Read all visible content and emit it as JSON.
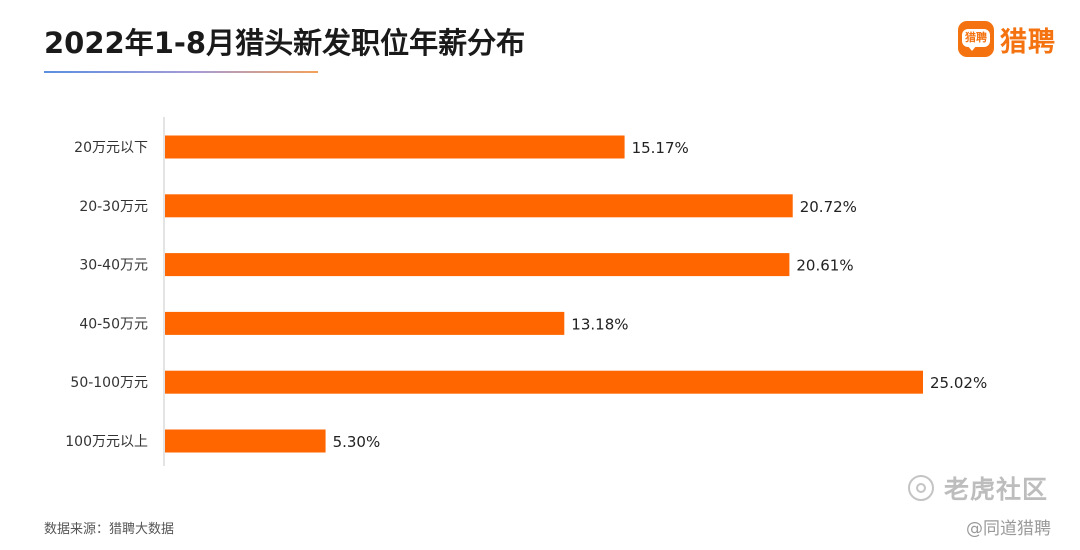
{
  "header": {
    "title": "2022年1-8月猎头新发职位年薪分布"
  },
  "logo": {
    "mark_text": "猎聘",
    "text": "猎聘"
  },
  "colors": {
    "bar": "#ff6600",
    "axis": "#c8c8c8",
    "brand": "#f4720f"
  },
  "chart_data": {
    "type": "bar",
    "orientation": "horizontal",
    "title": "2022年1-8月猎头新发职位年薪分布",
    "categories": [
      "20万元以下",
      "20-30万元",
      "30-40万元",
      "40-50万元",
      "50-100万元",
      "100万元以上"
    ],
    "values": [
      15.17,
      20.72,
      20.61,
      13.18,
      25.02,
      5.3
    ],
    "value_labels": [
      "15.17%",
      "20.72%",
      "20.61%",
      "13.18%",
      "25.02%",
      "5.30%"
    ],
    "unit": "%",
    "xlim": [
      0,
      25.02
    ],
    "grid": false,
    "legend": "none"
  },
  "footer": {
    "source": "数据来源：猎聘大数据"
  },
  "watermark": {
    "main": "老虎社区",
    "sub": "@同道猎聘",
    "icon": "tiger-community-icon"
  }
}
